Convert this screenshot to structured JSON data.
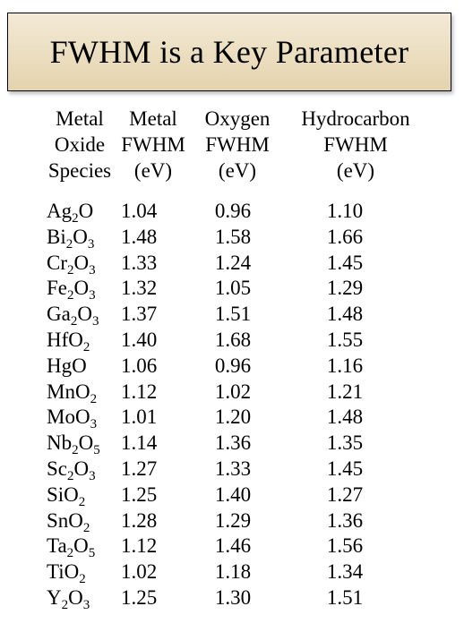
{
  "title": "FWHM is a Key Parameter",
  "headers": {
    "species": [
      "Metal",
      "Oxide",
      "Species"
    ],
    "metal": [
      "Metal",
      "FWHM",
      "(eV)"
    ],
    "oxygen": [
      "Oxygen",
      "FWHM",
      "(eV)"
    ],
    "hydrocarbon": [
      "Hydrocarbon",
      "FWHM",
      "(eV)"
    ]
  },
  "rows": [
    {
      "species": [
        "Ag",
        "2",
        "O"
      ],
      "metal": "1.04",
      "oxygen": "0.96",
      "hydrocarbon": "1.10"
    },
    {
      "species": [
        "Bi",
        "2",
        "O",
        "3"
      ],
      "metal": "1.48",
      "oxygen": "1.58",
      "hydrocarbon": "1.66"
    },
    {
      "species": [
        "Cr",
        "2",
        "O",
        "3"
      ],
      "metal": "1.33",
      "oxygen": "1.24",
      "hydrocarbon": "1.45"
    },
    {
      "species": [
        "Fe",
        "2",
        "O",
        "3"
      ],
      "metal": "1.32",
      "oxygen": "1.05",
      "hydrocarbon": "1.29"
    },
    {
      "species": [
        "Ga",
        "2",
        "O",
        "3"
      ],
      "metal": "1.37",
      "oxygen": "1.51",
      "hydrocarbon": "1.48"
    },
    {
      "species": [
        "HfO",
        "2"
      ],
      "metal": "1.40",
      "oxygen": "1.68",
      "hydrocarbon": "1.55"
    },
    {
      "species": [
        "HgO"
      ],
      "metal": "1.06",
      "oxygen": "0.96",
      "hydrocarbon": "1.16"
    },
    {
      "species": [
        "MnO",
        "2"
      ],
      "metal": "1.12",
      "oxygen": "1.02",
      "hydrocarbon": "1.21"
    },
    {
      "species": [
        "MoO",
        "3"
      ],
      "metal": "1.01",
      "oxygen": "1.20",
      "hydrocarbon": "1.48"
    },
    {
      "species": [
        "Nb",
        "2",
        "O",
        "5"
      ],
      "metal": "1.14",
      "oxygen": "1.36",
      "hydrocarbon": "1.35"
    },
    {
      "species": [
        "Sc",
        "2",
        "O",
        "3"
      ],
      "metal": "1.27",
      "oxygen": "1.33",
      "hydrocarbon": "1.45"
    },
    {
      "species": [
        "SiO",
        "2"
      ],
      "metal": "1.25",
      "oxygen": "1.40",
      "hydrocarbon": "1.27"
    },
    {
      "species": [
        "SnO",
        "2"
      ],
      "metal": "1.28",
      "oxygen": "1.29",
      "hydrocarbon": "1.36"
    },
    {
      "species": [
        "Ta",
        "2",
        "O",
        "5"
      ],
      "metal": "1.12",
      "oxygen": "1.46",
      "hydrocarbon": "1.56"
    },
    {
      "species": [
        "TiO",
        "2"
      ],
      "metal": "1.02",
      "oxygen": "1.18",
      "hydrocarbon": "1.34"
    },
    {
      "species": [
        "Y",
        "2",
        "O",
        "3"
      ],
      "metal": "1.25",
      "oxygen": "1.30",
      "hydrocarbon": "1.51"
    }
  ]
}
